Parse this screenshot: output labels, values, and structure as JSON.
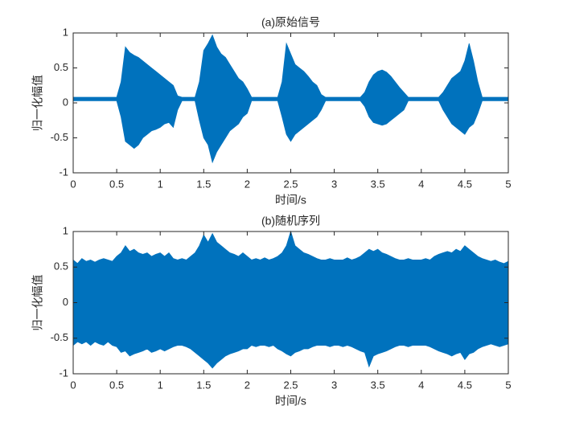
{
  "chart_data": [
    {
      "type": "area",
      "title": "(a)原始信号",
      "x_label": "时间/s",
      "y_label": "归一化幅值",
      "color": "#0072bd",
      "x": [
        0,
        0.05,
        0.1,
        0.15,
        0.2,
        0.25,
        0.3,
        0.35,
        0.4,
        0.45,
        0.5,
        0.55,
        0.6,
        0.65,
        0.7,
        0.75,
        0.8,
        0.85,
        0.9,
        0.95,
        1,
        1.05,
        1.1,
        1.15,
        1.2,
        1.25,
        1.3,
        1.35,
        1.4,
        1.45,
        1.5,
        1.55,
        1.6,
        1.65,
        1.7,
        1.75,
        1.8,
        1.85,
        1.9,
        1.95,
        2,
        2.05,
        2.1,
        2.15,
        2.2,
        2.25,
        2.3,
        2.35,
        2.4,
        2.45,
        2.5,
        2.55,
        2.6,
        2.65,
        2.7,
        2.75,
        2.8,
        2.85,
        2.9,
        2.95,
        3,
        3.05,
        3.1,
        3.15,
        3.2,
        3.25,
        3.3,
        3.35,
        3.4,
        3.45,
        3.5,
        3.55,
        3.6,
        3.65,
        3.7,
        3.75,
        3.8,
        3.85,
        3.9,
        3.95,
        4,
        4.05,
        4.1,
        4.15,
        4.2,
        4.25,
        4.3,
        4.35,
        4.4,
        4.45,
        4.5,
        4.55,
        4.6,
        4.65,
        4.7,
        4.75,
        4.8,
        4.85,
        4.9,
        4.95,
        5
      ],
      "upper": [
        0.08,
        0.08,
        0.08,
        0.08,
        0.08,
        0.08,
        0.08,
        0.08,
        0.08,
        0.08,
        0.08,
        0.3,
        0.8,
        0.72,
        0.68,
        0.65,
        0.6,
        0.55,
        0.5,
        0.45,
        0.4,
        0.35,
        0.3,
        0.25,
        0.1,
        0.08,
        0.08,
        0.08,
        0.08,
        0.3,
        0.75,
        0.85,
        0.97,
        0.8,
        0.7,
        0.65,
        0.55,
        0.45,
        0.35,
        0.3,
        0.2,
        0.08,
        0.08,
        0.08,
        0.08,
        0.08,
        0.08,
        0.08,
        0.3,
        0.85,
        0.7,
        0.55,
        0.5,
        0.45,
        0.38,
        0.3,
        0.25,
        0.12,
        0.08,
        0.08,
        0.08,
        0.08,
        0.08,
        0.08,
        0.08,
        0.08,
        0.08,
        0.15,
        0.3,
        0.4,
        0.45,
        0.47,
        0.44,
        0.38,
        0.3,
        0.22,
        0.15,
        0.08,
        0.08,
        0.08,
        0.08,
        0.08,
        0.08,
        0.08,
        0.08,
        0.15,
        0.25,
        0.35,
        0.4,
        0.45,
        0.6,
        0.85,
        0.6,
        0.3,
        0.08,
        0.08,
        0.08,
        0.08,
        0.08,
        0.08,
        0.08
      ],
      "lower": [
        0.03,
        0.03,
        0.03,
        0.03,
        0.03,
        0.03,
        0.03,
        0.03,
        0.03,
        0.03,
        0.03,
        -0.2,
        -0.55,
        -0.6,
        -0.65,
        -0.6,
        -0.5,
        -0.45,
        -0.4,
        -0.38,
        -0.35,
        -0.3,
        -0.28,
        -0.35,
        -0.1,
        0.03,
        0.03,
        0.03,
        0.03,
        -0.25,
        -0.5,
        -0.6,
        -0.85,
        -0.7,
        -0.6,
        -0.5,
        -0.4,
        -0.35,
        -0.3,
        -0.2,
        -0.15,
        0.03,
        0.03,
        0.03,
        0.03,
        0.03,
        0.03,
        0.03,
        -0.2,
        -0.45,
        -0.55,
        -0.45,
        -0.4,
        -0.35,
        -0.3,
        -0.25,
        -0.2,
        -0.1,
        0.03,
        0.03,
        0.03,
        0.03,
        0.03,
        0.03,
        0.03,
        0.03,
        0.03,
        -0.05,
        -0.2,
        -0.28,
        -0.3,
        -0.32,
        -0.3,
        -0.25,
        -0.2,
        -0.15,
        -0.1,
        0.03,
        0.03,
        0.03,
        0.03,
        0.03,
        0.03,
        0.03,
        0.03,
        -0.1,
        -0.2,
        -0.3,
        -0.35,
        -0.4,
        -0.45,
        -0.35,
        -0.3,
        -0.15,
        0.03,
        0.03,
        0.03,
        0.03,
        0.03,
        0.03,
        0.03
      ],
      "xlim": [
        0,
        5
      ],
      "xticks": [
        0,
        0.5,
        1,
        1.5,
        2,
        2.5,
        3,
        3.5,
        4,
        4.5,
        5
      ],
      "ylim": [
        -1,
        1
      ],
      "yticks": [
        -1,
        -0.5,
        0,
        0.5,
        1
      ]
    },
    {
      "type": "area",
      "title": "(b)随机序列",
      "x_label": "时间/s",
      "y_label": "归一化幅值",
      "color": "#0072bd",
      "x": [
        0,
        0.05,
        0.1,
        0.15,
        0.2,
        0.25,
        0.3,
        0.35,
        0.4,
        0.45,
        0.5,
        0.55,
        0.6,
        0.65,
        0.7,
        0.75,
        0.8,
        0.85,
        0.9,
        0.95,
        1,
        1.05,
        1.1,
        1.15,
        1.2,
        1.25,
        1.3,
        1.35,
        1.4,
        1.45,
        1.5,
        1.55,
        1.6,
        1.65,
        1.7,
        1.75,
        1.8,
        1.85,
        1.9,
        1.95,
        2,
        2.05,
        2.1,
        2.15,
        2.2,
        2.25,
        2.3,
        2.35,
        2.4,
        2.45,
        2.5,
        2.55,
        2.6,
        2.65,
        2.7,
        2.75,
        2.8,
        2.85,
        2.9,
        2.95,
        3,
        3.05,
        3.1,
        3.15,
        3.2,
        3.25,
        3.3,
        3.35,
        3.4,
        3.45,
        3.5,
        3.55,
        3.6,
        3.65,
        3.7,
        3.75,
        3.8,
        3.85,
        3.9,
        3.95,
        4,
        4.05,
        4.1,
        4.15,
        4.2,
        4.25,
        4.3,
        4.35,
        4.4,
        4.45,
        4.5,
        4.55,
        4.6,
        4.65,
        4.7,
        4.75,
        4.8,
        4.85,
        4.9,
        4.95,
        5
      ],
      "upper": [
        0.6,
        0.55,
        0.62,
        0.58,
        0.6,
        0.57,
        0.6,
        0.62,
        0.6,
        0.58,
        0.65,
        0.7,
        0.8,
        0.72,
        0.75,
        0.7,
        0.68,
        0.7,
        0.65,
        0.68,
        0.7,
        0.65,
        0.7,
        0.62,
        0.6,
        0.62,
        0.6,
        0.65,
        0.7,
        0.8,
        0.95,
        0.85,
        0.97,
        0.85,
        0.8,
        0.75,
        0.7,
        0.68,
        0.65,
        0.7,
        0.65,
        0.6,
        0.62,
        0.6,
        0.63,
        0.6,
        0.62,
        0.65,
        0.7,
        0.8,
        1.0,
        0.8,
        0.75,
        0.7,
        0.68,
        0.65,
        0.62,
        0.6,
        0.6,
        0.62,
        0.6,
        0.6,
        0.6,
        0.63,
        0.6,
        0.62,
        0.65,
        0.7,
        0.75,
        0.72,
        0.75,
        0.7,
        0.68,
        0.65,
        0.62,
        0.6,
        0.6,
        0.62,
        0.6,
        0.6,
        0.6,
        0.62,
        0.6,
        0.65,
        0.68,
        0.7,
        0.72,
        0.7,
        0.75,
        0.72,
        0.8,
        0.75,
        0.7,
        0.65,
        0.62,
        0.6,
        0.58,
        0.6,
        0.57,
        0.55,
        0.58
      ],
      "lower": [
        -0.6,
        -0.55,
        -0.58,
        -0.55,
        -0.6,
        -0.55,
        -0.58,
        -0.6,
        -0.55,
        -0.6,
        -0.62,
        -0.7,
        -0.68,
        -0.75,
        -0.72,
        -0.7,
        -0.68,
        -0.65,
        -0.7,
        -0.68,
        -0.65,
        -0.68,
        -0.65,
        -0.62,
        -0.6,
        -0.6,
        -0.62,
        -0.65,
        -0.7,
        -0.75,
        -0.8,
        -0.85,
        -0.92,
        -0.85,
        -0.8,
        -0.75,
        -0.72,
        -0.7,
        -0.68,
        -0.65,
        -0.65,
        -0.6,
        -0.62,
        -0.6,
        -0.6,
        -0.62,
        -0.6,
        -0.65,
        -0.68,
        -0.72,
        -0.75,
        -0.7,
        -0.68,
        -0.65,
        -0.65,
        -0.62,
        -0.6,
        -0.6,
        -0.6,
        -0.62,
        -0.6,
        -0.6,
        -0.62,
        -0.6,
        -0.62,
        -0.65,
        -0.68,
        -0.7,
        -0.9,
        -0.75,
        -0.72,
        -0.7,
        -0.68,
        -0.65,
        -0.62,
        -0.6,
        -0.6,
        -0.62,
        -0.6,
        -0.6,
        -0.6,
        -0.6,
        -0.62,
        -0.65,
        -0.68,
        -0.7,
        -0.72,
        -0.75,
        -0.72,
        -0.7,
        -0.8,
        -0.72,
        -0.7,
        -0.65,
        -0.62,
        -0.6,
        -0.58,
        -0.6,
        -0.62,
        -0.6,
        -0.58
      ],
      "xlim": [
        0,
        5
      ],
      "xticks": [
        0,
        0.5,
        1,
        1.5,
        2,
        2.5,
        3,
        3.5,
        4,
        4.5,
        5
      ],
      "ylim": [
        -1,
        1
      ],
      "yticks": [
        -1,
        -0.5,
        0,
        0.5,
        1
      ]
    }
  ]
}
